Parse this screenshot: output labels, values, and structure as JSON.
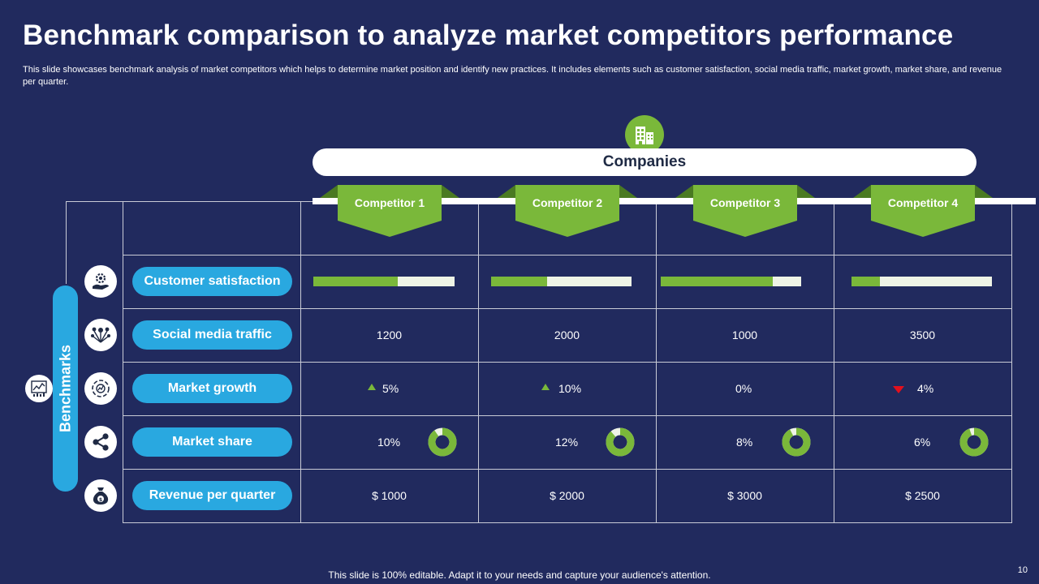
{
  "slide": {
    "title": "Benchmark comparison to analyze market competitors performance",
    "subtitle": "This slide showcases benchmark analysis of market competitors which helps to determine market position and identify new practices. It includes elements such as customer satisfaction, social media traffic, market growth, market share, and revenue per quarter.",
    "footer": "This slide is 100% editable. Adapt it to your needs and capture your audience's attention.",
    "page_number": "10"
  },
  "companies": {
    "label": "Companies",
    "icon": "building-icon",
    "competitors": [
      "Competitor 1",
      "Competitor 2",
      "Competitor 3",
      "Competitor 4"
    ]
  },
  "benchmarks": {
    "label": "Benchmarks",
    "icon": "analytics-icon",
    "rows": [
      {
        "label": "Customer satisfaction",
        "icon": "hand-gear-icon"
      },
      {
        "label": "Social media traffic",
        "icon": "network-icon"
      },
      {
        "label": "Market growth",
        "icon": "growth-cycle-icon"
      },
      {
        "label": "Market share",
        "icon": "share-icon"
      },
      {
        "label": "Revenue per quarter",
        "icon": "money-bag-icon"
      }
    ]
  },
  "values": {
    "customer_satisfaction": [
      0.6,
      0.4,
      0.8,
      0.2
    ],
    "social_media_traffic": [
      "1200",
      "2000",
      "1000",
      "3500"
    ],
    "market_growth": [
      {
        "text": "5%",
        "trend": "up"
      },
      {
        "text": "10%",
        "trend": "up"
      },
      {
        "text": "0%",
        "trend": "none"
      },
      {
        "text": "4%",
        "trend": "down"
      }
    ],
    "market_share": [
      {
        "text": "10%",
        "fraction": 0.1
      },
      {
        "text": "12%",
        "fraction": 0.12
      },
      {
        "text": "8%",
        "fraction": 0.08
      },
      {
        "text": "6%",
        "fraction": 0.06
      }
    ],
    "revenue_per_quarter": [
      "$ 1000",
      "$ 2000",
      "$ 3000",
      "$ 2500"
    ]
  },
  "colors": {
    "background": "#212a5e",
    "accent_green": "#7ab83a",
    "accent_blue": "#29a8e0",
    "trend_down": "#e3101d"
  }
}
